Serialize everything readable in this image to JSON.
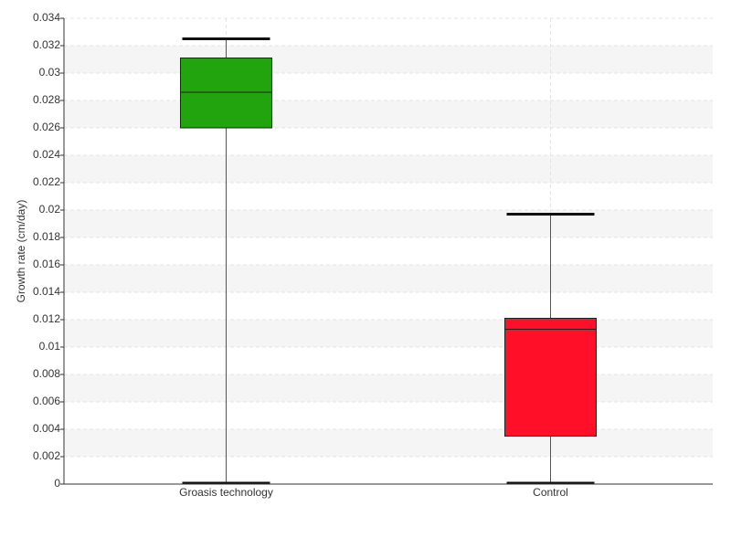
{
  "chart_data": {
    "type": "box",
    "y_label": "Growth rate (cm/day)",
    "categories": [
      "Groasis technology",
      "Control"
    ],
    "boxes": [
      {
        "color": "#22a40e",
        "whislo": 0,
        "q1": 0.026,
        "med": 0.0286,
        "q3": 0.0311,
        "whishi": 0.0325
      },
      {
        "color": "#ff0f28",
        "whislo": 0,
        "q1": 0.0035,
        "med": 0.0113,
        "q3": 0.0121,
        "whishi": 0.0197
      }
    ],
    "ylim": [
      0,
      0.034
    ],
    "yticks": [
      0,
      0.002,
      0.004,
      0.006,
      0.008,
      0.01,
      0.012,
      0.014,
      0.016,
      0.018,
      0.02,
      0.022,
      0.024,
      0.026,
      0.028,
      0.03,
      0.032,
      0.034
    ],
    "grid": true
  }
}
